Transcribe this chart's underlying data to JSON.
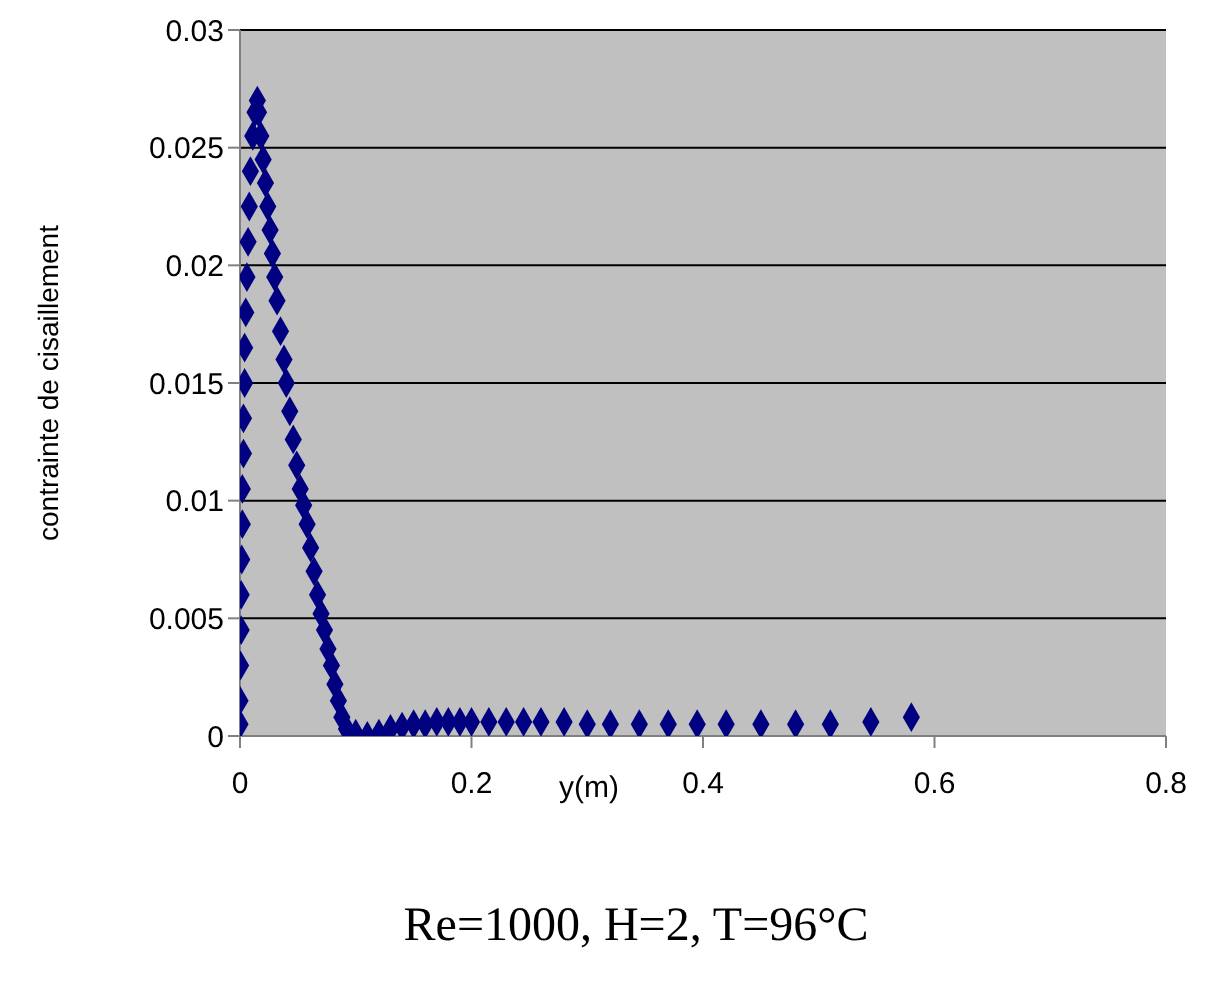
{
  "chart_data": {
    "type": "scatter",
    "ylabel": "contrainte de cisaillement",
    "xlabel": "y(m)",
    "annotations": [
      "Re=1000, H=2, T=96°C"
    ],
    "marker": "diamond",
    "grid": "y",
    "legend": false,
    "xlim": [
      0,
      0.8
    ],
    "xticks": [
      0,
      0.2,
      0.4,
      0.6,
      0.8
    ],
    "ylim": [
      0,
      0.03
    ],
    "yticks": [
      0,
      0.005,
      0.01,
      0.015,
      0.02,
      0.025,
      0.03
    ],
    "series": [
      {
        "color": "#000080",
        "x": [
          0,
          0,
          0.0005,
          0.001,
          0.001,
          0.0015,
          0.002,
          0.002,
          0.003,
          0.003,
          0.004,
          0.004,
          0.005,
          0.006,
          0.007,
          0.008,
          0.009,
          0.011,
          0.013,
          0.015,
          0.016,
          0.018,
          0.02,
          0.022,
          0.024,
          0.026,
          0.028,
          0.03,
          0.032,
          0.035,
          0.038,
          0.04,
          0.043,
          0.046,
          0.049,
          0.052,
          0.055,
          0.058,
          0.061,
          0.064,
          0.067,
          0.07,
          0.073,
          0.076,
          0.079,
          0.082,
          0.085,
          0.088,
          0.092,
          0.1,
          0.11,
          0.12,
          0.13,
          0.14,
          0.15,
          0.16,
          0.17,
          0.18,
          0.19,
          0.2,
          0.215,
          0.23,
          0.245,
          0.26,
          0.28,
          0.3,
          0.32,
          0.345,
          0.37,
          0.395,
          0.42,
          0.45,
          0.48,
          0.51,
          0.545,
          0.58
        ],
        "values": [
          0.0005,
          0.0015,
          0.003,
          0.0045,
          0.006,
          0.0075,
          0.009,
          0.0105,
          0.012,
          0.0135,
          0.015,
          0.0165,
          0.018,
          0.0195,
          0.021,
          0.0225,
          0.024,
          0.0255,
          0.0265,
          0.027,
          0.0265,
          0.0255,
          0.0245,
          0.0235,
          0.0225,
          0.0215,
          0.0205,
          0.0195,
          0.0185,
          0.0172,
          0.016,
          0.015,
          0.0138,
          0.0126,
          0.0115,
          0.0105,
          0.0098,
          0.009,
          0.008,
          0.007,
          0.006,
          0.0052,
          0.0045,
          0.0037,
          0.003,
          0.0022,
          0.0015,
          0.0008,
          0.0003,
          0.0001,
          0,
          0.0001,
          0.0003,
          0.0004,
          0.0005,
          0.0005,
          0.0006,
          0.0006,
          0.0006,
          0.0006,
          0.0006,
          0.0006,
          0.0006,
          0.0006,
          0.0006,
          0.0005,
          0.0005,
          0.0005,
          0.0005,
          0.0005,
          0.0005,
          0.0005,
          0.0005,
          0.0005,
          0.0006,
          0.0008
        ]
      }
    ]
  }
}
